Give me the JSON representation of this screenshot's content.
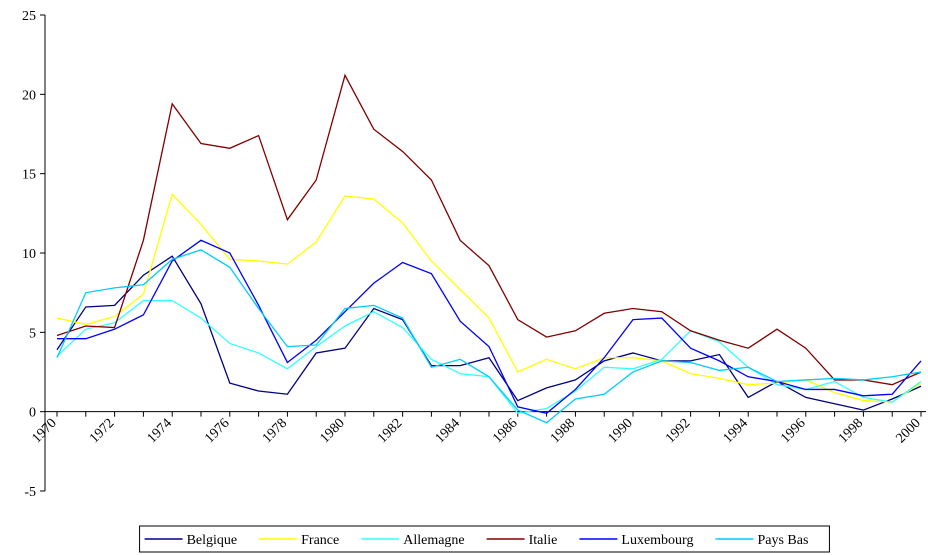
{
  "chart_data": {
    "type": "line",
    "categories": [
      "1970",
      null,
      "1972",
      null,
      "1974",
      null,
      "1976",
      null,
      "1978",
      null,
      "1980",
      null,
      "1982",
      null,
      "1984",
      null,
      "1986",
      null,
      "1988",
      null,
      "1990",
      null,
      "1992",
      null,
      "1994",
      null,
      "1996",
      null,
      "1998",
      null,
      "2000"
    ],
    "series": [
      {
        "name": "Belgique",
        "color": "#000080",
        "values": [
          3.9,
          6.6,
          6.7,
          8.6,
          9.8,
          6.8,
          1.8,
          1.3,
          1.1,
          3.7,
          4.0,
          6.5,
          5.8,
          2.9,
          2.9,
          3.4,
          0.7,
          1.5,
          2.0,
          3.2,
          3.7,
          3.2,
          3.2,
          3.6,
          0.9,
          1.9,
          0.9,
          0.5,
          0.1,
          0.8,
          1.6
        ]
      },
      {
        "name": "France",
        "color": "#ffff00",
        "values": [
          5.9,
          5.5,
          6.0,
          7.4,
          13.7,
          11.8,
          9.6,
          9.5,
          9.3,
          10.7,
          13.6,
          13.4,
          11.9,
          9.5,
          7.7,
          5.9,
          2.5,
          3.3,
          2.7,
          3.4,
          3.4,
          3.2,
          2.4,
          2.1,
          1.7,
          1.8,
          2.0,
          1.2,
          0.7,
          0.6,
          1.8
        ]
      },
      {
        "name": "Allemagne",
        "color": "#33ffff",
        "values": [
          3.5,
          5.2,
          5.6,
          7.0,
          7.0,
          5.9,
          4.3,
          3.7,
          2.7,
          4.1,
          5.4,
          6.3,
          5.3,
          3.3,
          2.4,
          2.2,
          -0.1,
          0.2,
          1.3,
          2.8,
          2.7,
          3.3,
          5.1,
          4.4,
          2.8,
          1.7,
          1.4,
          1.9,
          0.9,
          0.6,
          1.9
        ]
      },
      {
        "name": "Italie",
        "color": "#800000",
        "values": [
          4.8,
          5.4,
          5.3,
          10.8,
          19.4,
          16.9,
          16.6,
          17.4,
          12.1,
          14.6,
          21.2,
          17.8,
          16.4,
          14.6,
          10.8,
          9.2,
          5.8,
          4.7,
          5.1,
          6.2,
          6.5,
          6.3,
          5.1,
          4.5,
          4.0,
          5.2,
          4.0,
          2.0,
          2.0,
          1.7,
          2.5
        ]
      },
      {
        "name": "Luxembourg",
        "color": "#0000ff",
        "values": [
          4.6,
          4.6,
          5.2,
          6.1,
          9.5,
          10.8,
          10.0,
          6.7,
          3.1,
          4.5,
          6.3,
          8.1,
          9.4,
          8.7,
          5.7,
          4.1,
          0.3,
          -0.1,
          1.4,
          3.4,
          5.8,
          5.9,
          4.0,
          3.2,
          2.2,
          1.9,
          1.4,
          1.4,
          1.0,
          1.1,
          3.2
        ]
      },
      {
        "name": "Pays Bas",
        "color": "#00ccff",
        "values": [
          3.4,
          7.5,
          7.8,
          8.0,
          9.6,
          10.2,
          9.1,
          6.5,
          4.1,
          4.2,
          6.5,
          6.7,
          5.9,
          2.8,
          3.3,
          2.2,
          0.1,
          -0.7,
          0.8,
          1.1,
          2.5,
          3.2,
          3.1,
          2.6,
          2.8,
          1.9,
          2.0,
          2.1,
          2.0,
          2.2,
          2.5
        ]
      }
    ],
    "ylim": [
      -5,
      25
    ],
    "yticks": [
      -5,
      0,
      5,
      10,
      15,
      20,
      25
    ],
    "legend": "bottom"
  }
}
